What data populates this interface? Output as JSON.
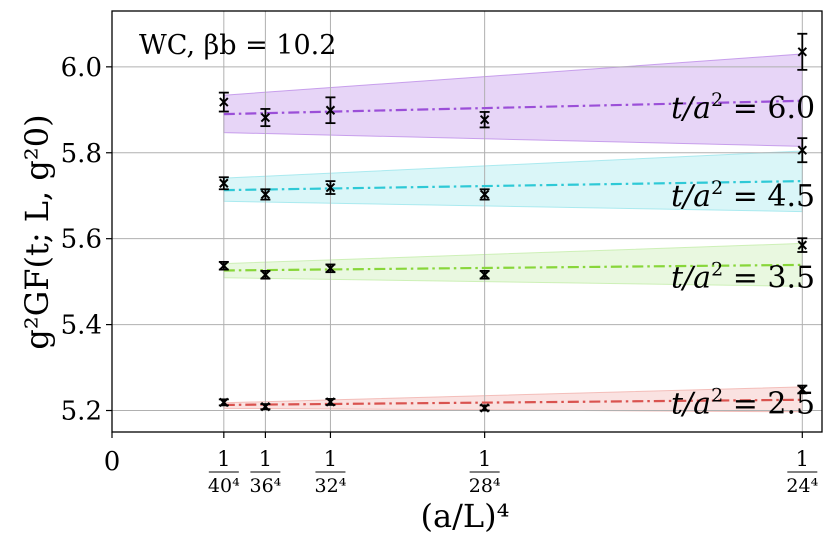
{
  "chart_data": {
    "type": "scatter",
    "annotation": "WC, βb = 10.2",
    "xlabel": "(a/L)⁴",
    "ylabel": "g²GF(t; L, g²0)",
    "xlim": [
      0,
      1.24
    ],
    "ylim": [
      5.15,
      6.13
    ],
    "grid": true,
    "x_ticks": [
      {
        "value": 0,
        "label": "0"
      },
      {
        "value": 0.1953,
        "num": "1",
        "den": "40⁴"
      },
      {
        "value": 0.2679,
        "num": "1",
        "den": "36⁴"
      },
      {
        "value": 0.3815,
        "num": "1",
        "den": "32⁴"
      },
      {
        "value": 0.6508,
        "num": "1",
        "den": "28⁴"
      },
      {
        "value": 1.2056,
        "num": "1",
        "den": "24⁴"
      }
    ],
    "y_ticks": [
      5.2,
      5.4,
      5.6,
      5.8,
      6.0
    ],
    "y_tick_labels": [
      "5.2",
      "5.4",
      "5.6",
      "5.8",
      "6.0"
    ],
    "series": [
      {
        "name": "t/a² = 6.0",
        "color": "#9b4fd8",
        "band_color": "#b57fe6",
        "points": [
          {
            "x": 0.1953,
            "y": 5.918,
            "err": 0.022
          },
          {
            "x": 0.2679,
            "y": 5.882,
            "err": 0.02
          },
          {
            "x": 0.3815,
            "y": 5.899,
            "err": 0.03
          },
          {
            "x": 0.6508,
            "y": 5.877,
            "err": 0.018
          },
          {
            "x": 1.2056,
            "y": 6.035,
            "err": 0.042
          },
          {
            "x": 1.2056,
            "y": 5.806,
            "err": 0.028
          }
        ],
        "fit": [
          5.89,
          5.921
        ],
        "band_lo": [
          5.847,
          5.815
        ],
        "band_hi": [
          5.934,
          6.03
        ]
      },
      {
        "name": "t/a² = 4.5",
        "color": "#2ec9d6",
        "band_color": "#8ee3ea",
        "points": [
          {
            "x": 0.1953,
            "y": 5.729,
            "err": 0.014
          },
          {
            "x": 0.2679,
            "y": 5.703,
            "err": 0.012
          },
          {
            "x": 0.3815,
            "y": 5.719,
            "err": 0.015
          },
          {
            "x": 0.6508,
            "y": 5.703,
            "err": 0.012
          }
        ],
        "fit": [
          5.713,
          5.734
        ],
        "band_lo": [
          5.687,
          5.663
        ],
        "band_hi": [
          5.741,
          5.804
        ]
      },
      {
        "name": "t/a² = 3.5",
        "color": "#88d63a",
        "band_color": "#bdeba0",
        "points": [
          {
            "x": 0.1953,
            "y": 5.537,
            "err": 0.009
          },
          {
            "x": 0.2679,
            "y": 5.516,
            "err": 0.009
          },
          {
            "x": 0.3815,
            "y": 5.531,
            "err": 0.009
          },
          {
            "x": 0.6508,
            "y": 5.516,
            "err": 0.009
          },
          {
            "x": 1.2056,
            "y": 5.585,
            "err": 0.016
          }
        ],
        "fit": [
          5.526,
          5.539
        ],
        "band_lo": [
          5.509,
          5.489
        ],
        "band_hi": [
          5.542,
          5.589
        ]
      },
      {
        "name": "t/a² = 2.5",
        "color": "#d9534f",
        "band_color": "#f0a8a3",
        "points": [
          {
            "x": 0.1953,
            "y": 5.219,
            "err": 0.007
          },
          {
            "x": 0.2679,
            "y": 5.209,
            "err": 0.006
          },
          {
            "x": 0.3815,
            "y": 5.22,
            "err": 0.007
          },
          {
            "x": 0.6508,
            "y": 5.206,
            "err": 0.006
          },
          {
            "x": 1.2056,
            "y": 5.249,
            "err": 0.009
          }
        ],
        "fit": [
          5.213,
          5.225
        ],
        "band_lo": [
          5.205,
          5.197
        ],
        "band_hi": [
          5.218,
          5.255
        ]
      }
    ],
    "series_labels": [
      {
        "series": "t/a² = 6.0",
        "lhs": "t/a",
        "exp": "2",
        "rhs": " = 6.0",
        "y": 5.907
      },
      {
        "series": "t/a² = 4.5",
        "lhs": "t/a",
        "exp": "2",
        "rhs": " = 4.5",
        "y": 5.702
      },
      {
        "series": "t/a² = 3.5",
        "lhs": "t/a",
        "exp": "2",
        "rhs": " = 3.5",
        "y": 5.512
      },
      {
        "series": "t/a² = 2.5",
        "lhs": "t/a",
        "exp": "2",
        "rhs": " = 2.5",
        "y": 5.219
      }
    ]
  }
}
